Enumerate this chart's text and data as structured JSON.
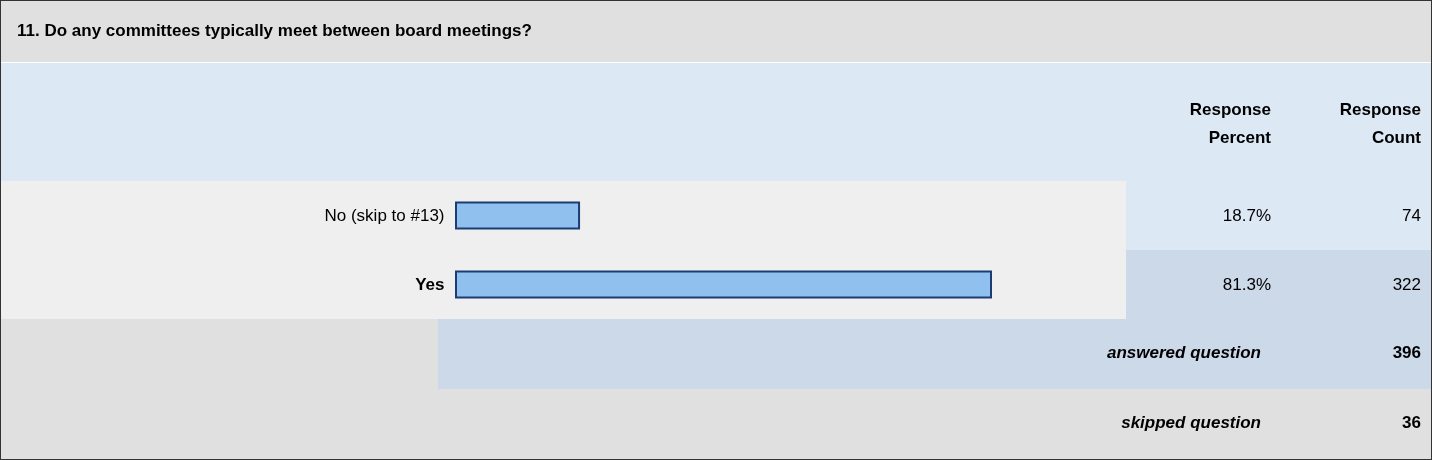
{
  "chart_data": {
    "type": "bar",
    "orientation": "horizontal",
    "title": "11. Do any committees typically meet between board meetings?",
    "categories": [
      "No (skip to #13)",
      "Yes"
    ],
    "values": [
      18.7,
      81.3
    ],
    "value_labels": [
      "18.7%",
      "81.3%"
    ],
    "color": "#8fc0ee",
    "tick_labels": "y",
    "annotations": [
      "Response Percent",
      "Response Count",
      "answered question",
      "396",
      "skipped question",
      "36",
      "74",
      "322"
    ]
  }
}
